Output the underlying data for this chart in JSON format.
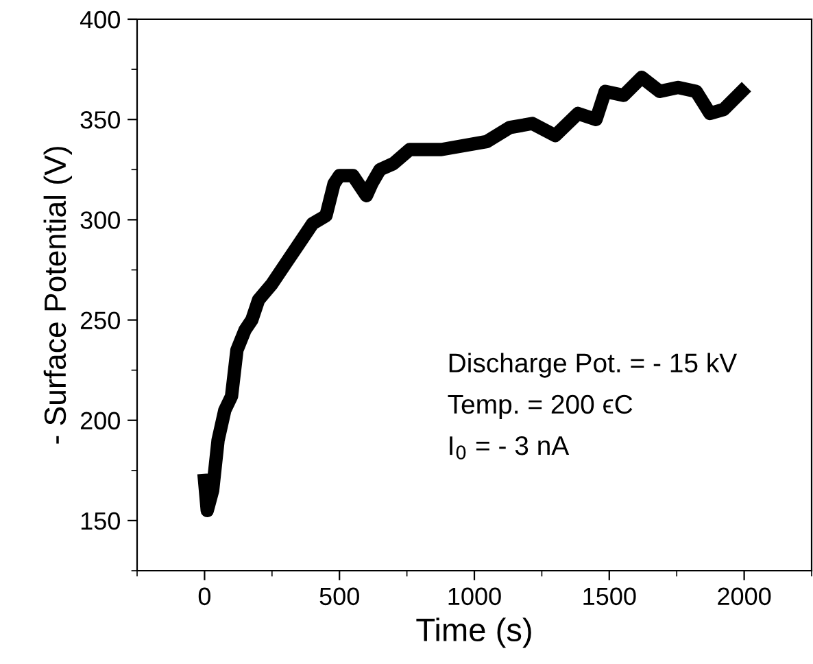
{
  "chart_data": {
    "type": "line",
    "xlabel": "Time (s)",
    "ylabel": "- Surface Potential (V)",
    "xlim": [
      -250,
      2250
    ],
    "ylim": [
      125,
      400
    ],
    "xticks": [
      0,
      500,
      1000,
      1500,
      2000
    ],
    "yticks": [
      150,
      200,
      250,
      300,
      350,
      400
    ],
    "grid": false,
    "legend": false,
    "marker": "none",
    "line_style": "solid",
    "series": [
      {
        "color": "#000000",
        "x": [
          0,
          10,
          30,
          50,
          75,
          100,
          120,
          150,
          175,
          200,
          250,
          300,
          350,
          400,
          450,
          480,
          500,
          550,
          600,
          620,
          650,
          700,
          760,
          878,
          1046,
          1131,
          1215,
          1300,
          1384,
          1451,
          1485,
          1553,
          1620,
          1687,
          1755,
          1822,
          1873,
          1924,
          1991
        ],
        "values": [
          170,
          155,
          165,
          190,
          205,
          212,
          235,
          245,
          250,
          260,
          268,
          278,
          288,
          298,
          302,
          318,
          322,
          322,
          312,
          318,
          325,
          328,
          335,
          335,
          339,
          346,
          348,
          342,
          353,
          350,
          364,
          362,
          371,
          364,
          366,
          364,
          353,
          355,
          364
        ]
      }
    ],
    "annotations": [
      "Discharge Pot. = - 15 kV",
      "Temp. = 200 ϵC",
      "I$_{0}$ = - 3 nA"
    ]
  }
}
